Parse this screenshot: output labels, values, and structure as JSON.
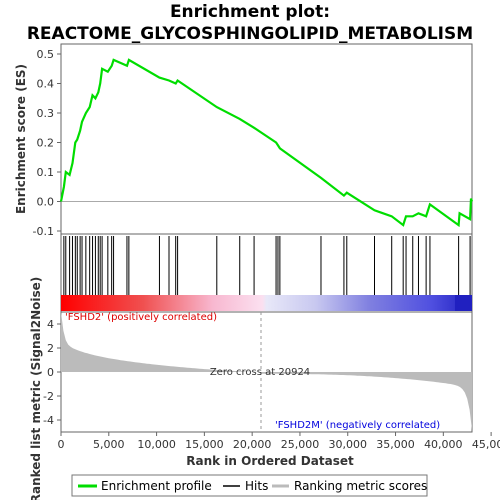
{
  "chart_data": {
    "type": "line",
    "title_line1": "Enrichment plot:",
    "title_line2": "REACTOME_GLYCOSPHINGOLIPID_METABOLISM",
    "es_ylabel": "Enrichment score (ES)",
    "metric_ylabel": "Ranked list metric (Signal2Noise)",
    "xlabel": "Rank in Ordered Dataset",
    "xlim": [
      0,
      43000
    ],
    "es_ylim": [
      -0.1,
      0.5
    ],
    "metric_ylim": [
      -5,
      5
    ],
    "x_ticks": [
      0,
      5000,
      10000,
      15000,
      20000,
      25000,
      30000,
      35000,
      40000,
      45000
    ],
    "x_tick_labels": [
      "0",
      "5,000",
      "10,000",
      "15,000",
      "20,000",
      "25,000",
      "30,000",
      "35,000",
      "40,000",
      "45,000"
    ],
    "es_ticks": [
      -0.1,
      0.0,
      0.1,
      0.2,
      0.3,
      0.4,
      0.5
    ],
    "es_tick_labels": [
      "-0.1",
      "0.0",
      "0.1",
      "0.2",
      "0.3",
      "0.4",
      "0.5"
    ],
    "metric_ticks": [
      -4,
      -2,
      0,
      2,
      4
    ],
    "metric_tick_labels": [
      "-4",
      "-2",
      "0",
      "2",
      "4"
    ],
    "zero_cross_text": "Zero cross at 20924",
    "zero_cross": 20924,
    "pos_label": "'FSHD2' (positively correlated)",
    "neg_label": "'FSHD2M' (negatively correlated)",
    "colors": {
      "es_line": "#00dd00",
      "hits": "#000000",
      "metric_fill": "#bbbbbb",
      "pos_text": "#dd0000",
      "neg_text": "#0000dd"
    },
    "hits": [
      300,
      500,
      900,
      1200,
      1500,
      1700,
      2000,
      2200,
      2600,
      3000,
      3300,
      3600,
      3900,
      4100,
      4300,
      4900,
      5300,
      5500,
      6900,
      7100,
      10300,
      11300,
      12000,
      12200,
      16300,
      18700,
      20200,
      22500,
      22700,
      22900,
      27200,
      29600,
      29900,
      32800,
      34600,
      35800,
      36100,
      36800,
      37400,
      38200,
      38600,
      41600,
      42800
    ],
    "es_points": [
      [
        0,
        0.0
      ],
      [
        300,
        0.05
      ],
      [
        500,
        0.1
      ],
      [
        900,
        0.09
      ],
      [
        1200,
        0.13
      ],
      [
        1500,
        0.2
      ],
      [
        1700,
        0.21
      ],
      [
        2000,
        0.24
      ],
      [
        2200,
        0.27
      ],
      [
        2600,
        0.3
      ],
      [
        3000,
        0.32
      ],
      [
        3300,
        0.36
      ],
      [
        3600,
        0.35
      ],
      [
        3900,
        0.37
      ],
      [
        4100,
        0.4
      ],
      [
        4300,
        0.45
      ],
      [
        4900,
        0.44
      ],
      [
        5300,
        0.46
      ],
      [
        5500,
        0.48
      ],
      [
        6900,
        0.46
      ],
      [
        7100,
        0.48
      ],
      [
        10300,
        0.42
      ],
      [
        11300,
        0.41
      ],
      [
        12000,
        0.4
      ],
      [
        12200,
        0.41
      ],
      [
        16300,
        0.32
      ],
      [
        18700,
        0.28
      ],
      [
        20200,
        0.25
      ],
      [
        22500,
        0.2
      ],
      [
        22700,
        0.19
      ],
      [
        22900,
        0.18
      ],
      [
        27200,
        0.08
      ],
      [
        29600,
        0.02
      ],
      [
        29900,
        0.03
      ],
      [
        32800,
        -0.03
      ],
      [
        34600,
        -0.05
      ],
      [
        35800,
        -0.08
      ],
      [
        36100,
        -0.05
      ],
      [
        36800,
        -0.05
      ],
      [
        37400,
        -0.04
      ],
      [
        38200,
        -0.05
      ],
      [
        38600,
        -0.01
      ],
      [
        41600,
        -0.08
      ],
      [
        41700,
        -0.04
      ],
      [
        42800,
        -0.06
      ],
      [
        42900,
        0.01
      ],
      [
        43000,
        0.0
      ]
    ],
    "legend": [
      "Enrichment profile",
      "Hits",
      "Ranking metric scores"
    ]
  }
}
